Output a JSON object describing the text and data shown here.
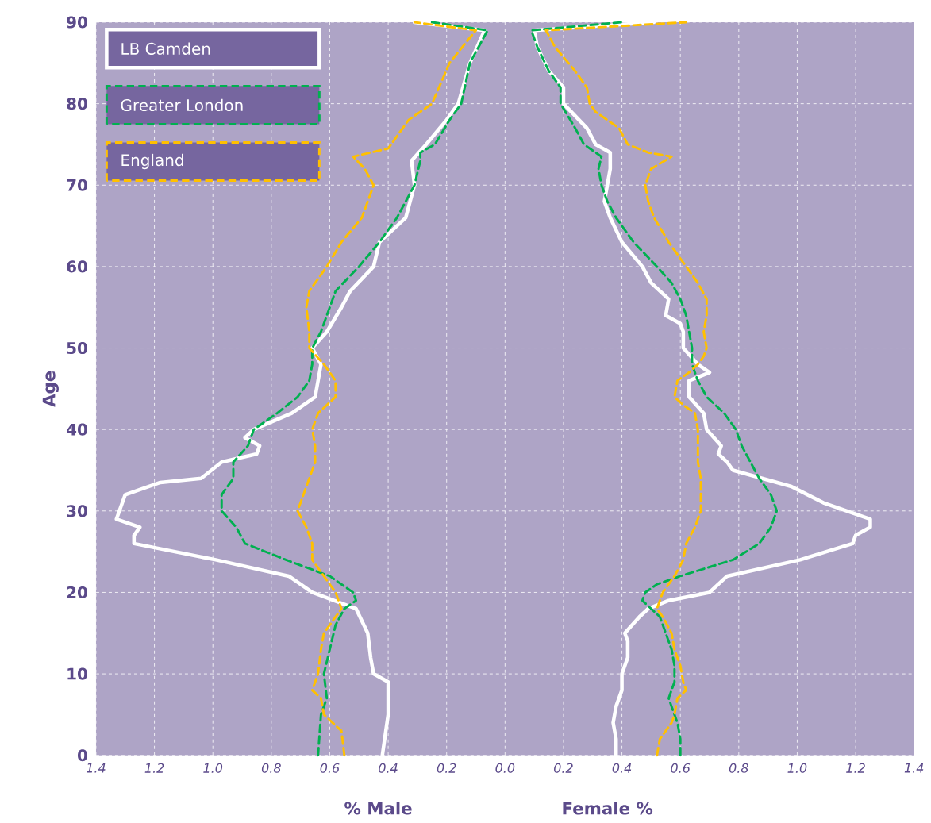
{
  "chart_data": {
    "type": "line",
    "ylabel": "Age",
    "annotations": [
      "% Male",
      "Female %"
    ],
    "xlim": [
      -1.4,
      1.4
    ],
    "ylim": [
      0,
      90
    ],
    "xticks": [
      {
        "value": -1.4,
        "label": "1.4"
      },
      {
        "value": -1.2,
        "label": "1.2"
      },
      {
        "value": -1,
        "label": "1.0"
      },
      {
        "value": -0.8,
        "label": "0.8"
      },
      {
        "value": -0.6,
        "label": "0.6"
      },
      {
        "value": -0.4,
        "label": "0.4"
      },
      {
        "value": -0.2,
        "label": "0.2"
      },
      {
        "value": 0,
        "label": "0.0"
      },
      0.2,
      0.4,
      0.6,
      0.8,
      {
        "value": 1,
        "label": "1.0"
      },
      1.2,
      1.4
    ],
    "yticks": [
      0,
      10,
      20,
      30,
      40,
      50,
      60,
      70,
      80,
      90
    ],
    "grid": true,
    "legend": "top left",
    "series": [
      {
        "name": "LB Camden",
        "color": "#ffffff",
        "line_style": "solid",
        "x": [
          -0.42,
          -0.4,
          -0.4,
          -0.45,
          -0.46,
          -0.47,
          -0.51,
          -0.66,
          -0.74,
          -0.99,
          -1.27,
          -1.27,
          -1.25,
          -1.33,
          -1.32,
          -1.3,
          -1.18,
          -1.04,
          -0.97,
          -0.85,
          -0.84,
          -0.89,
          -0.86,
          -0.73,
          -0.65,
          -0.64,
          -0.63,
          -0.66,
          -0.61,
          -0.56,
          -0.53,
          -0.45,
          -0.43,
          -0.34,
          -0.31,
          -0.32,
          -0.27,
          -0.2,
          -0.16,
          -0.12,
          -0.07,
          -0.31
        ],
        "values": [
          0,
          5,
          9,
          10,
          12,
          15,
          18,
          20,
          22,
          24,
          26,
          27,
          28,
          29,
          30,
          32,
          33.5,
          34,
          36,
          37,
          38,
          39,
          40,
          42,
          44,
          46,
          48,
          50,
          52,
          55,
          57,
          60,
          63,
          66,
          70,
          73,
          75,
          78,
          80,
          85,
          89,
          90
        ]
      },
      {
        "name": "Greater London",
        "color": "#00b050",
        "line_style": "dashed",
        "x": [
          -0.64,
          -0.63,
          -0.61,
          -0.62,
          -0.6,
          -0.58,
          -0.55,
          -0.51,
          -0.52,
          -0.6,
          -0.75,
          -0.89,
          -0.92,
          -0.97,
          -0.97,
          -0.93,
          -0.93,
          -0.88,
          -0.86,
          -0.78,
          -0.71,
          -0.67,
          -0.66,
          -0.66,
          -0.63,
          -0.6,
          -0.58,
          -0.5,
          -0.43,
          -0.37,
          -0.31,
          -0.29,
          -0.29,
          -0.24,
          -0.19,
          -0.15,
          -0.12,
          -0.06,
          -0.25
        ],
        "values": [
          0,
          5,
          7,
          10,
          13,
          16,
          18,
          19,
          20,
          22,
          24,
          26,
          28,
          30,
          32,
          34,
          36,
          38,
          40,
          42,
          44,
          46,
          48,
          50,
          52,
          55,
          57,
          60,
          63,
          66,
          70,
          73,
          74,
          75,
          78,
          80,
          85,
          89,
          90
        ]
      },
      {
        "name": "England",
        "color": "#ffc000",
        "line_style": "dashed",
        "x": [
          -0.55,
          -0.56,
          -0.62,
          -0.63,
          -0.66,
          -0.64,
          -0.63,
          -0.62,
          -0.58,
          -0.56,
          -0.58,
          -0.62,
          -0.66,
          -0.66,
          -0.68,
          -0.71,
          -0.69,
          -0.67,
          -0.65,
          -0.65,
          -0.66,
          -0.64,
          -0.58,
          -0.58,
          -0.62,
          -0.67,
          -0.67,
          -0.68,
          -0.67,
          -0.61,
          -0.56,
          -0.49,
          -0.45,
          -0.48,
          -0.52,
          -0.4,
          -0.37,
          -0.33,
          -0.25,
          -0.19,
          -0.1,
          -0.31
        ],
        "values": [
          0,
          3,
          5,
          7,
          8,
          10,
          13,
          15,
          17,
          18,
          20,
          22,
          24,
          26,
          28,
          30,
          32,
          34,
          36,
          38,
          40,
          42,
          44,
          46,
          48,
          50,
          52,
          55,
          57,
          60,
          63,
          66,
          70,
          72,
          73.5,
          74.5,
          76,
          78,
          80,
          85,
          89,
          90
        ]
      },
      {
        "color": "#ffffff",
        "line_style": "solid",
        "x": [
          0.38,
          0.38,
          0.37,
          0.38,
          0.4,
          0.4,
          0.42,
          0.42,
          0.41,
          0.46,
          0.49,
          0.56,
          0.7,
          0.76,
          1.01,
          1.19,
          1.2,
          1.25,
          1.25,
          1.17,
          1.09,
          0.98,
          0.88,
          0.78,
          0.76,
          0.73,
          0.74,
          0.69,
          0.68,
          0.63,
          0.63,
          0.7,
          0.66,
          0.61,
          0.61,
          0.6,
          0.55,
          0.56,
          0.5,
          0.47,
          0.4,
          0.36,
          0.34,
          0.35,
          0.36,
          0.36,
          0.31,
          0.28,
          0.2,
          0.2,
          0.15,
          0.11,
          0.1,
          0.51
        ],
        "values": [
          0,
          2,
          4,
          6,
          8,
          10,
          12,
          14,
          15,
          17,
          18,
          19,
          20,
          22,
          24,
          26,
          27,
          28,
          29,
          30,
          31,
          33,
          34,
          35,
          36,
          37,
          38,
          40,
          42,
          44,
          46,
          47,
          48,
          50,
          52,
          53,
          54,
          56,
          58,
          60,
          63,
          66,
          68,
          70,
          72,
          74,
          75,
          77,
          80,
          82,
          84,
          87,
          89,
          90
        ]
      },
      {
        "color": "#00b050",
        "line_style": "dashed",
        "x": [
          0.6,
          0.6,
          0.59,
          0.57,
          0.56,
          0.58,
          0.58,
          0.57,
          0.55,
          0.53,
          0.5,
          0.47,
          0.48,
          0.52,
          0.6,
          0.78,
          0.87,
          0.91,
          0.93,
          0.91,
          0.87,
          0.84,
          0.81,
          0.79,
          0.75,
          0.69,
          0.66,
          0.64,
          0.64,
          0.63,
          0.62,
          0.6,
          0.57,
          0.52,
          0.44,
          0.38,
          0.35,
          0.33,
          0.32,
          0.33,
          0.27,
          0.24,
          0.19,
          0.19,
          0.15,
          0.11,
          0.09,
          0.4
        ],
        "values": [
          0,
          2,
          4,
          6,
          7,
          9,
          11,
          13,
          15,
          17,
          18,
          19,
          20,
          21,
          22,
          24,
          26,
          28,
          30,
          32,
          34,
          36,
          38,
          40,
          42,
          44,
          46,
          48,
          50,
          52,
          54,
          56,
          58,
          60,
          63,
          66,
          68,
          70,
          72,
          73.5,
          75,
          77,
          80,
          82,
          84,
          87,
          89,
          90
        ]
      },
      {
        "color": "#ffc000",
        "line_style": "dashed",
        "x": [
          0.52,
          0.53,
          0.57,
          0.58,
          0.59,
          0.62,
          0.61,
          0.6,
          0.58,
          0.57,
          0.54,
          0.52,
          0.54,
          0.58,
          0.61,
          0.62,
          0.65,
          0.67,
          0.67,
          0.66,
          0.66,
          0.65,
          0.61,
          0.58,
          0.59,
          0.63,
          0.66,
          0.68,
          0.69,
          0.68,
          0.69,
          0.69,
          0.66,
          0.62,
          0.56,
          0.51,
          0.49,
          0.48,
          0.5,
          0.57,
          0.49,
          0.42,
          0.39,
          0.31,
          0.29,
          0.28,
          0.24,
          0.17,
          0.14,
          0.62
        ],
        "values": [
          0,
          2,
          4,
          5,
          7,
          8,
          9,
          11,
          13,
          15,
          17,
          18,
          20,
          22,
          24,
          26,
          28,
          30,
          34,
          36,
          40,
          42,
          43,
          44,
          46,
          47,
          48,
          49,
          50,
          52,
          54,
          56,
          58,
          60,
          63,
          66,
          68,
          70,
          72,
          73.5,
          74,
          75,
          77,
          79,
          80,
          82,
          84,
          87,
          89,
          90
        ]
      }
    ]
  }
}
